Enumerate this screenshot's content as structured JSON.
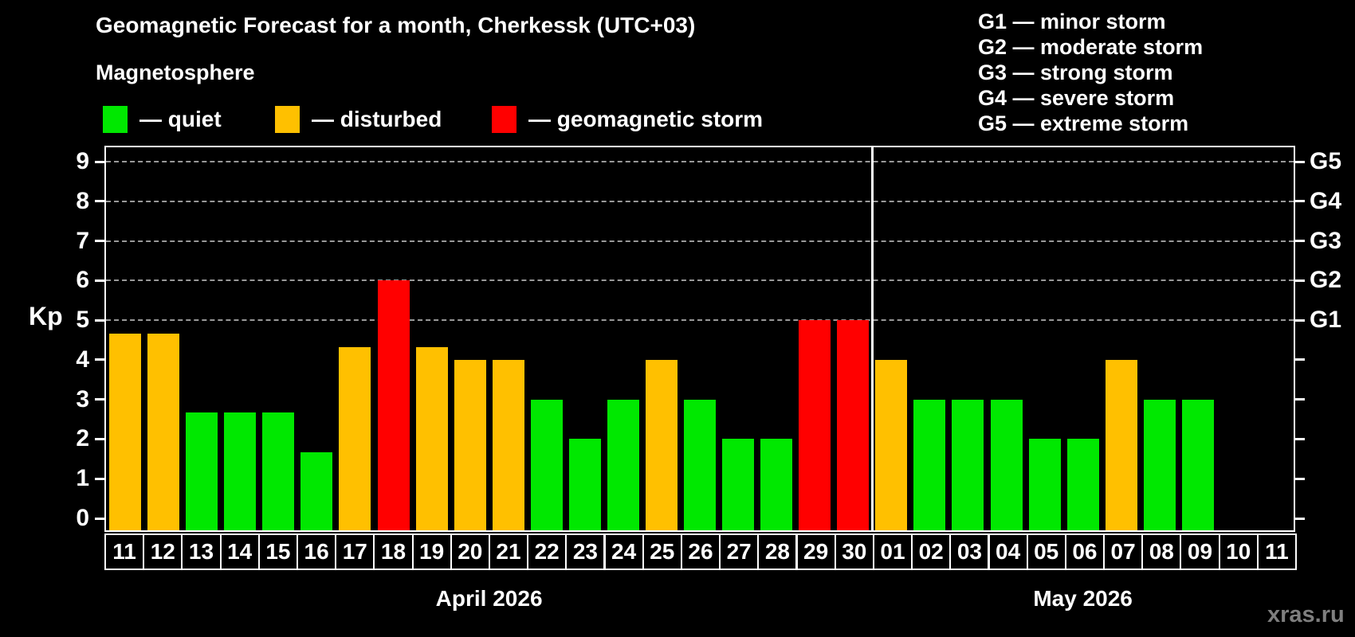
{
  "title": "Geomagnetic Forecast for a month, Cherkessk (UTC+03)",
  "subtitle": "Magnetosphere",
  "watermark": "xras.ru",
  "colors": {
    "background": "#000000",
    "quiet": "#00e800",
    "disturbed": "#ffc000",
    "storm": "#ff0000",
    "axis": "#ffffff",
    "grid": "#999999",
    "watermark": "#7f7f7f"
  },
  "legend": [
    {
      "key": "quiet",
      "label": "— quiet"
    },
    {
      "key": "disturbed",
      "label": "— disturbed"
    },
    {
      "key": "storm",
      "label": "— geomagnetic storm"
    }
  ],
  "g_legend": [
    "G1 — minor storm",
    "G2 — moderate storm",
    "G3 — strong storm",
    "G4 — severe storm",
    "G5 — extreme storm"
  ],
  "chart_data": {
    "type": "bar",
    "ylabel": "Kp",
    "ylim": [
      0,
      9
    ],
    "yticks": [
      0,
      1,
      2,
      3,
      4,
      5,
      6,
      7,
      8,
      9
    ],
    "grid_levels": [
      5,
      6,
      7,
      8,
      9
    ],
    "legend_position": "top-left",
    "grid": "dashed horizontal at storm levels only",
    "right_axis": [
      {
        "kp": 5,
        "label": "G1"
      },
      {
        "kp": 6,
        "label": "G2"
      },
      {
        "kp": 7,
        "label": "G3"
      },
      {
        "kp": 8,
        "label": "G4"
      },
      {
        "kp": 9,
        "label": "G5"
      }
    ],
    "months": [
      {
        "label": "April 2026",
        "days": [
          {
            "day": "11",
            "kp": 4.67,
            "status": "disturbed"
          },
          {
            "day": "12",
            "kp": 4.67,
            "status": "disturbed"
          },
          {
            "day": "13",
            "kp": 2.67,
            "status": "quiet"
          },
          {
            "day": "14",
            "kp": 2.67,
            "status": "quiet"
          },
          {
            "day": "15",
            "kp": 2.67,
            "status": "quiet"
          },
          {
            "day": "16",
            "kp": 1.67,
            "status": "quiet"
          },
          {
            "day": "17",
            "kp": 4.33,
            "status": "disturbed"
          },
          {
            "day": "18",
            "kp": 6,
            "status": "storm"
          },
          {
            "day": "19",
            "kp": 4.33,
            "status": "disturbed"
          },
          {
            "day": "20",
            "kp": 4,
            "status": "disturbed"
          },
          {
            "day": "21",
            "kp": 4,
            "status": "disturbed"
          },
          {
            "day": "22",
            "kp": 3,
            "status": "quiet"
          },
          {
            "day": "23",
            "kp": 2,
            "status": "quiet"
          },
          {
            "day": "24",
            "kp": 3,
            "status": "quiet"
          },
          {
            "day": "25",
            "kp": 4,
            "status": "disturbed"
          },
          {
            "day": "26",
            "kp": 3,
            "status": "quiet"
          },
          {
            "day": "27",
            "kp": 2,
            "status": "quiet"
          },
          {
            "day": "28",
            "kp": 2,
            "status": "quiet"
          },
          {
            "day": "29",
            "kp": 5,
            "status": "storm"
          },
          {
            "day": "30",
            "kp": 5,
            "status": "storm"
          }
        ]
      },
      {
        "label": "May 2026",
        "days": [
          {
            "day": "01",
            "kp": 4,
            "status": "disturbed"
          },
          {
            "day": "02",
            "kp": 3,
            "status": "quiet"
          },
          {
            "day": "03",
            "kp": 3,
            "status": "quiet"
          },
          {
            "day": "04",
            "kp": 3,
            "status": "quiet"
          },
          {
            "day": "05",
            "kp": 2,
            "status": "quiet"
          },
          {
            "day": "06",
            "kp": 2,
            "status": "quiet"
          },
          {
            "day": "07",
            "kp": 4,
            "status": "disturbed"
          },
          {
            "day": "08",
            "kp": 3,
            "status": "quiet"
          },
          {
            "day": "09",
            "kp": 3,
            "status": "quiet"
          },
          {
            "day": "10",
            "kp": 0,
            "status": "none"
          },
          {
            "day": "11",
            "kp": 0,
            "status": "none"
          }
        ]
      }
    ]
  }
}
